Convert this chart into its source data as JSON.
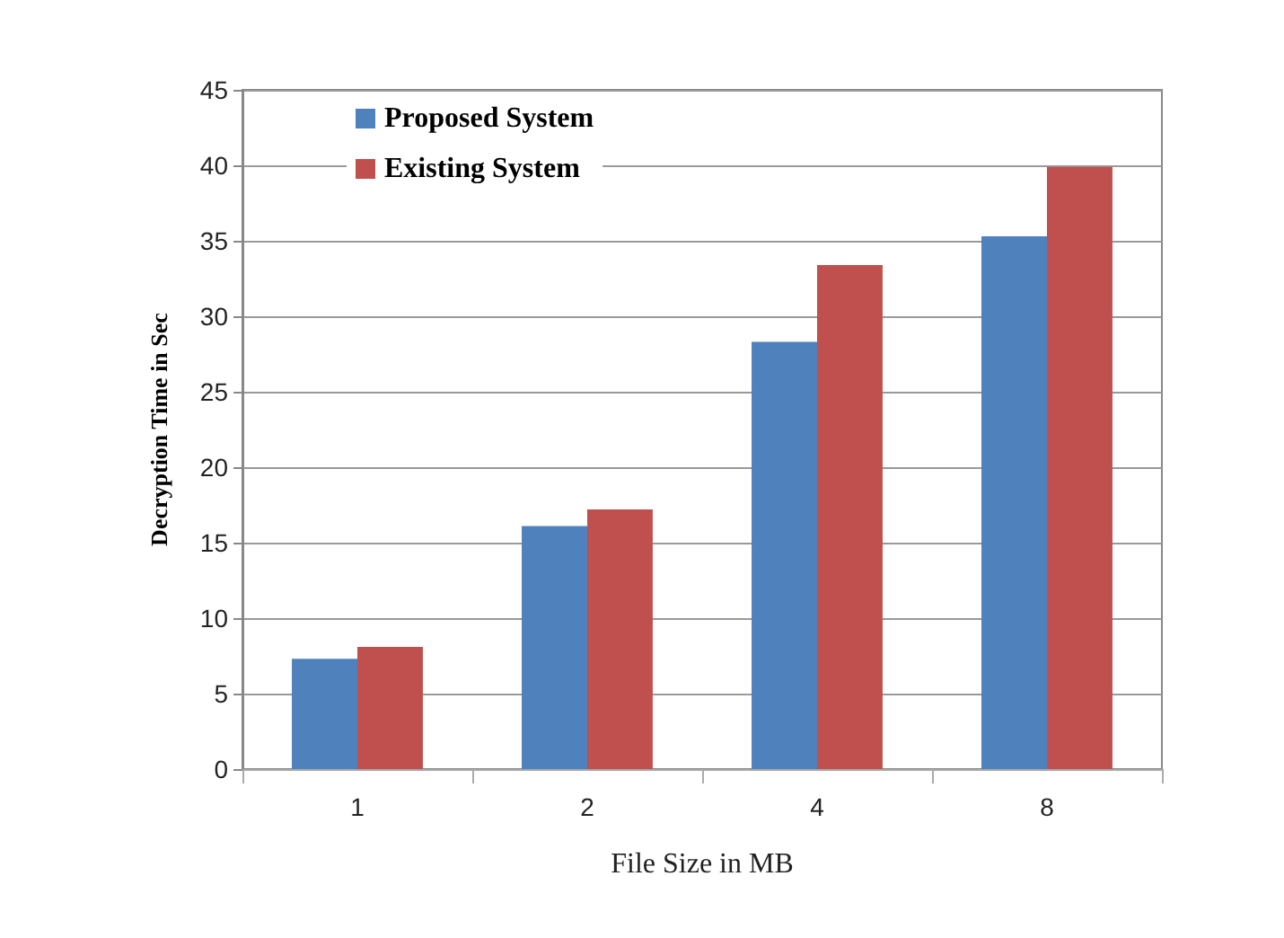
{
  "chart_data": {
    "type": "bar",
    "xlabel": "File Size in MB",
    "ylabel": "Decryption Time in Sec",
    "categories": [
      "1",
      "2",
      "4",
      "8"
    ],
    "series": [
      {
        "name": "Proposed System",
        "color": "#4f81bd",
        "values": [
          7.3,
          16.1,
          28.3,
          35.3
        ]
      },
      {
        "name": "Existing System",
        "color": "#c0504d",
        "values": [
          8.1,
          17.2,
          33.4,
          39.9
        ]
      }
    ],
    "ylim": [
      0,
      45
    ],
    "yticks": [
      0,
      5,
      10,
      15,
      20,
      25,
      30,
      35,
      40,
      45
    ],
    "grid": "y",
    "legend": "top left"
  }
}
